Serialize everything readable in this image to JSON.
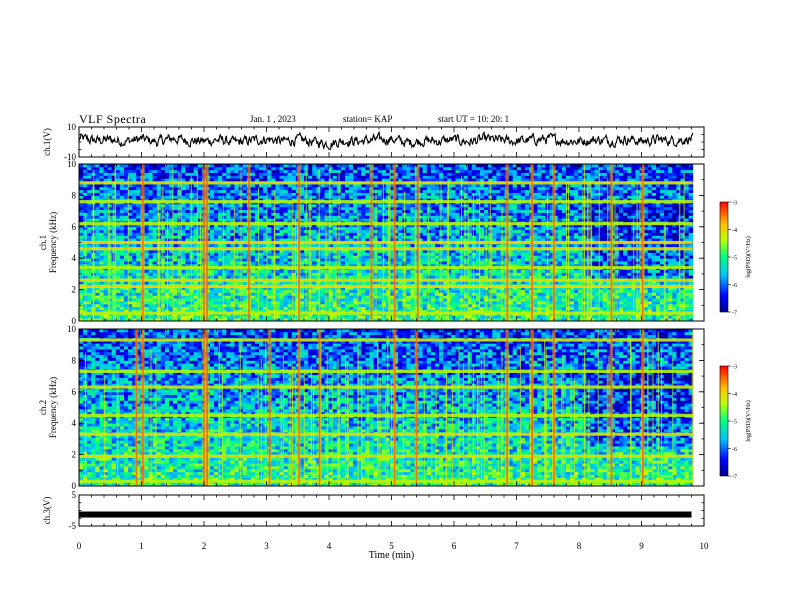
{
  "header": {
    "title": "VLF Spectra",
    "date": "Jan. 1 , 2023",
    "station": "station= KAP",
    "start_ut": "start UT =   10: 20: 1"
  },
  "colorbar": {
    "ticks": [
      "-3",
      "-4",
      "-5",
      "-6",
      "-7"
    ],
    "label": "log(PSD)(V²/Hz)"
  },
  "chart_data": [
    {
      "type": "line",
      "title": "VLF Spectra",
      "ylabel": "ch.1(V)",
      "ylim": [
        -10,
        10
      ],
      "y_ticks": [
        "10",
        "-10"
      ],
      "xlim": [
        0,
        10
      ],
      "description_series": "ch.1 waveform envelope",
      "series": [
        {
          "x": [
            0.0,
            0.25,
            0.5,
            0.75,
            1.0,
            1.25,
            1.5,
            1.75,
            2.0,
            2.25,
            2.5,
            2.75,
            3.0,
            3.25,
            3.5,
            3.75,
            4.0,
            4.25,
            4.5,
            4.75,
            5.0,
            5.25,
            5.5,
            5.75,
            6.0,
            6.25,
            6.5,
            6.75,
            7.0,
            7.25,
            7.5,
            7.75,
            8.0,
            8.25,
            8.5,
            8.75,
            9.0,
            9.25,
            9.5,
            9.75
          ],
          "y": [
            2.5,
            1.0,
            1.5,
            0.5,
            2.0,
            0.0,
            2.5,
            1.0,
            0.5,
            1.5,
            -0.5,
            1.0,
            2.0,
            0.5,
            1.5,
            0.0,
            -1.0,
            1.0,
            0.5,
            1.5,
            2.0,
            -0.5,
            1.0,
            0.5,
            1.5,
            0.0,
            2.0,
            1.0,
            0.5,
            1.5,
            2.0,
            1.0,
            0.5,
            1.5,
            1.0,
            2.0,
            0.5,
            1.5,
            1.0,
            2.0
          ]
        }
      ]
    },
    {
      "type": "heatmap",
      "ylabel": "ch.1\nFrequency (kHz)",
      "ylim": [
        0,
        10
      ],
      "y_ticks": [
        "0",
        "2",
        "4",
        "6",
        "8",
        "10"
      ],
      "xlim": [
        0,
        10
      ],
      "color_scale": [
        -7,
        -3
      ],
      "bright_lines_khz": [
        0.5,
        2.2,
        2.6,
        3.4,
        4.6,
        5.0,
        6.2,
        7.6,
        8.8
      ],
      "bursts_min": [
        1.02,
        2.0,
        2.05,
        2.72,
        3.52,
        4.68,
        5.05,
        5.42,
        6.85,
        7.25,
        7.6,
        8.52,
        9.02
      ]
    },
    {
      "type": "heatmap",
      "ylabel": "ch.2\nFrequency (kHz)",
      "ylim": [
        0,
        10
      ],
      "y_ticks": [
        "0",
        "2",
        "4",
        "6",
        "8",
        "10"
      ],
      "xlim": [
        0,
        10
      ],
      "color_scale": [
        -7,
        -3
      ],
      "bright_lines_khz": [
        0.3,
        1.9,
        3.3,
        4.5,
        6.3,
        7.3,
        9.3
      ],
      "bursts_min": [
        0.92,
        1.02,
        2.0,
        2.05,
        3.05,
        3.52,
        3.85,
        5.05,
        5.4,
        6.85,
        7.25,
        7.6,
        8.52,
        9.02
      ]
    },
    {
      "type": "line",
      "ylabel": "ch.3(V)",
      "xlabel": "Time (min)",
      "ylim": [
        -5,
        5
      ],
      "y_ticks": [
        "5",
        "-5"
      ],
      "xlim": [
        0,
        10
      ],
      "x_ticks": [
        "0",
        "1",
        "2",
        "3",
        "4",
        "5",
        "6",
        "7",
        "8",
        "9",
        "10"
      ],
      "series": [
        {
          "x": [
            0,
            9.8
          ],
          "y": [
            -1.3,
            -1.3
          ]
        }
      ]
    }
  ]
}
